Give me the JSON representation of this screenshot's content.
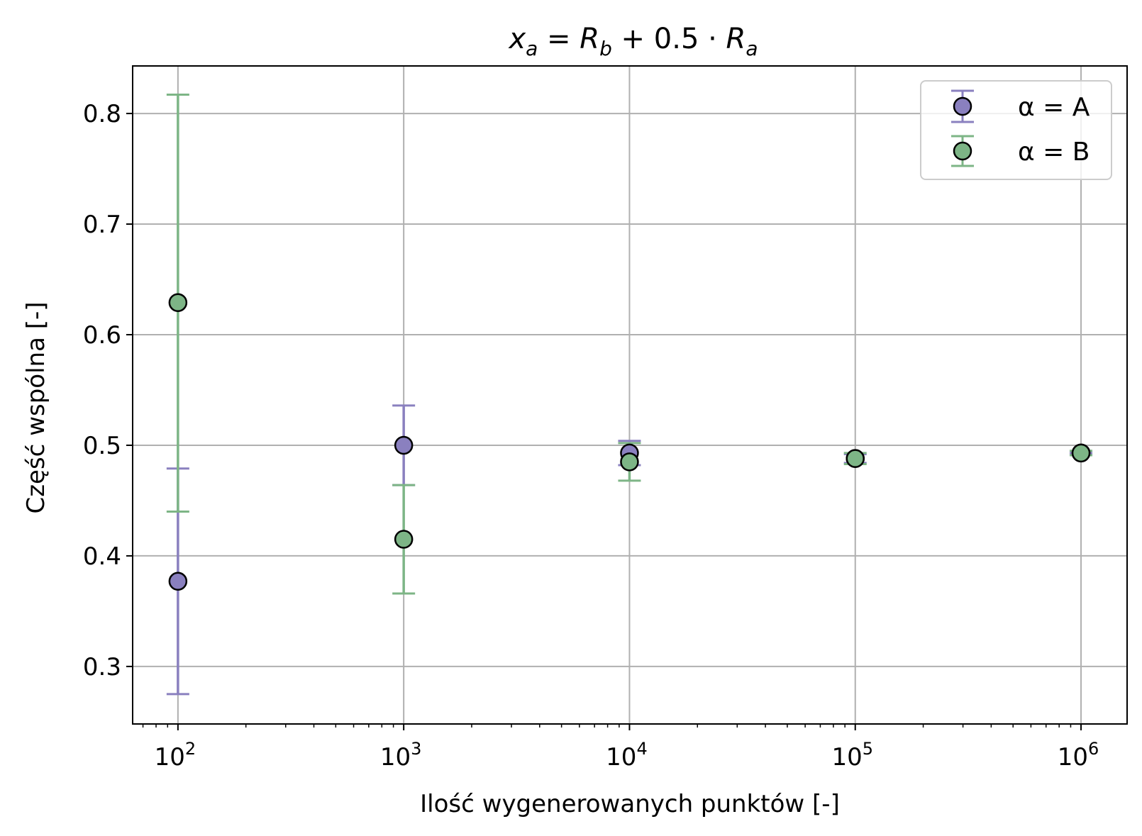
{
  "chart_data": {
    "type": "scatter",
    "title": "x_a = R_b + 0.5 · R_a",
    "xlabel": "Ilość wygenerowanych punktów [-]",
    "ylabel": "Część wspólna [-]",
    "xscale": "log",
    "xlim": [
      63,
      1600000
    ],
    "ylim": [
      0.248,
      0.843
    ],
    "grid": true,
    "legend_position": "top-right",
    "xticks": [
      {
        "value": 100,
        "base": "10",
        "exp": "2"
      },
      {
        "value": 1000,
        "base": "10",
        "exp": "3"
      },
      {
        "value": 10000,
        "base": "10",
        "exp": "4"
      },
      {
        "value": 100000,
        "base": "10",
        "exp": "5"
      },
      {
        "value": 1000000,
        "base": "10",
        "exp": "6"
      }
    ],
    "yticks": [
      {
        "value": 0.3,
        "label": "0.3"
      },
      {
        "value": 0.4,
        "label": "0.4"
      },
      {
        "value": 0.5,
        "label": "0.5"
      },
      {
        "value": 0.6,
        "label": "0.6"
      },
      {
        "value": 0.7,
        "label": "0.7"
      },
      {
        "value": 0.8,
        "label": "0.8"
      }
    ],
    "series": [
      {
        "name": "α = A",
        "color": "#8a80bf",
        "points": [
          {
            "x": 100,
            "y": 0.377,
            "err_low": 0.275,
            "err_high": 0.479
          },
          {
            "x": 1000,
            "y": 0.5,
            "err_low": 0.464,
            "err_high": 0.536
          },
          {
            "x": 10000,
            "y": 0.493,
            "err_low": 0.482,
            "err_high": 0.504
          },
          {
            "x": 100000,
            "y": 0.488,
            "err_low": 0.484,
            "err_high": 0.492
          },
          {
            "x": 1000000,
            "y": 0.493,
            "err_low": 0.492,
            "err_high": 0.494
          }
        ]
      },
      {
        "name": "α = B",
        "color": "#7db586",
        "points": [
          {
            "x": 100,
            "y": 0.629,
            "err_low": 0.44,
            "err_high": 0.817
          },
          {
            "x": 1000,
            "y": 0.415,
            "err_low": 0.366,
            "err_high": 0.464
          },
          {
            "x": 10000,
            "y": 0.485,
            "err_low": 0.468,
            "err_high": 0.502
          },
          {
            "x": 100000,
            "y": 0.488,
            "err_low": 0.483,
            "err_high": 0.493
          },
          {
            "x": 1000000,
            "y": 0.493,
            "err_low": 0.491,
            "err_high": 0.495
          }
        ]
      }
    ]
  }
}
